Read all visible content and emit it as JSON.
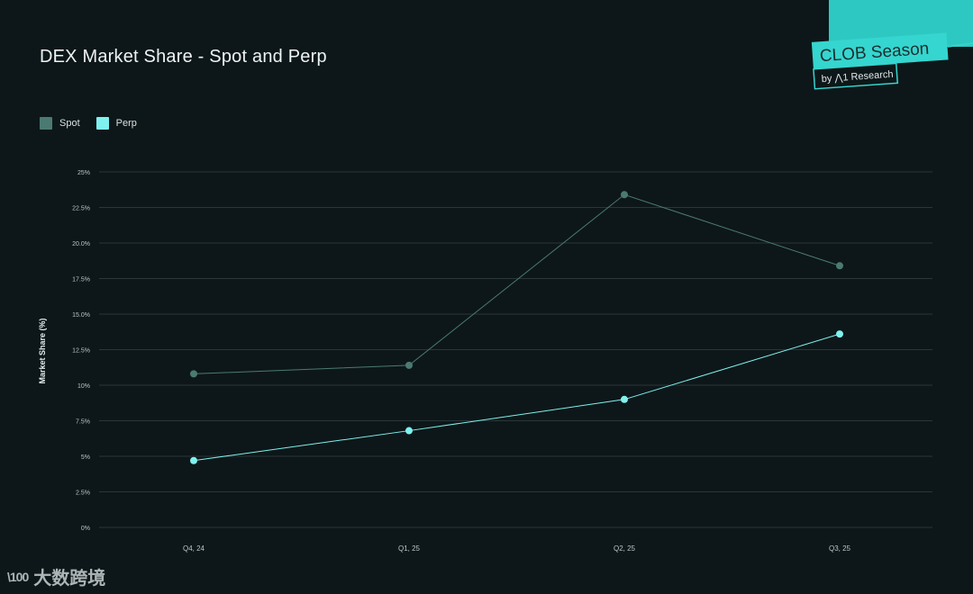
{
  "header": {
    "title": "DEX Market Share - Spot and Perp"
  },
  "badge": {
    "main": "CLOB Season",
    "sub": "by ⋀1 Research"
  },
  "watermark": {
    "text": "大数跨境",
    "logo": "\\100"
  },
  "colors": {
    "background": "#0d1719",
    "spot": "#4b7a72",
    "perp": "#7ff2ef",
    "grid": "#2a3638",
    "accent": "#35c9c3"
  },
  "chart_data": {
    "type": "line",
    "title": "DEX Market Share - Spot and Perp",
    "xlabel": "",
    "ylabel": "Market Share (%)",
    "categories": [
      "Q4, 24",
      "Q1, 25",
      "Q2, 25",
      "Q3, 25"
    ],
    "ylim": [
      0,
      25
    ],
    "yticks": [
      0,
      2.5,
      5,
      7.5,
      10,
      12.5,
      15,
      17.5,
      20,
      22.5,
      25
    ],
    "ytick_labels": [
      "0%",
      "2.5%",
      "5%",
      "7.5%",
      "10%",
      "12.5%",
      "15.0%",
      "17.5%",
      "20.0%",
      "22.5%",
      "25%"
    ],
    "grid": true,
    "legend_position": "top-left",
    "series": [
      {
        "name": "Spot",
        "values": [
          10.8,
          11.4,
          23.4,
          18.4
        ],
        "color": "#4b7a72"
      },
      {
        "name": "Perp",
        "values": [
          4.7,
          6.8,
          9.0,
          13.6
        ],
        "color": "#7ff2ef"
      }
    ]
  }
}
